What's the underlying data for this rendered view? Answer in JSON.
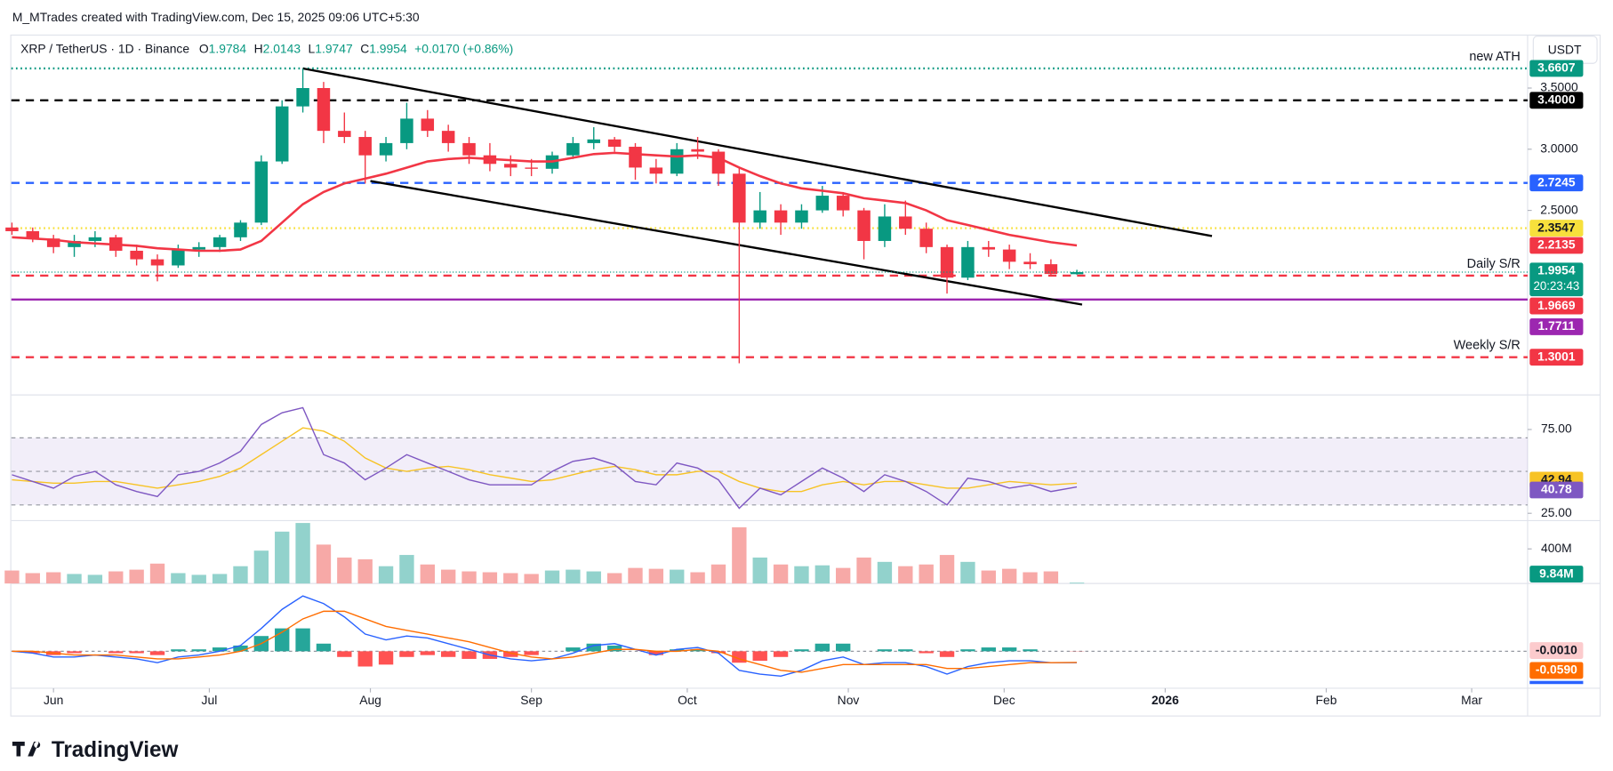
{
  "header": {
    "author_line": "M_MTrades created with TradingView.com, Dec 15, 2025 09:06 UTC+5:30",
    "symbol": "XRP / TetherUS · 1D · Binance",
    "ohlc_letters": [
      "O",
      "H",
      "L",
      "C"
    ],
    "change": "+0.0170 (+0.86%)",
    "currency": "USDT",
    "logo": "TradingView"
  },
  "chart_data": {
    "type": "candlestick",
    "x": [
      "2025-05-24",
      "2025-05-28",
      "2025-06-01",
      "2025-06-05",
      "2025-06-09",
      "2025-06-13",
      "2025-06-17",
      "2025-06-21",
      "2025-06-25",
      "2025-06-29",
      "2025-07-03",
      "2025-07-07",
      "2025-07-11",
      "2025-07-15",
      "2025-07-19",
      "2025-07-23",
      "2025-07-27",
      "2025-07-31",
      "2025-08-04",
      "2025-08-08",
      "2025-08-12",
      "2025-08-16",
      "2025-08-20",
      "2025-08-24",
      "2025-08-28",
      "2025-09-01",
      "2025-09-05",
      "2025-09-09",
      "2025-09-13",
      "2025-09-17",
      "2025-09-21",
      "2025-09-25",
      "2025-09-29",
      "2025-10-03",
      "2025-10-07",
      "2025-10-11",
      "2025-10-15",
      "2025-10-19",
      "2025-10-23",
      "2025-10-27",
      "2025-10-31",
      "2025-11-04",
      "2025-11-08",
      "2025-11-12",
      "2025-11-16",
      "2025-11-20",
      "2025-11-24",
      "2025-11-28",
      "2025-12-02",
      "2025-12-06",
      "2025-12-10",
      "2025-12-15"
    ],
    "open": [
      2.36,
      2.33,
      2.27,
      2.2,
      2.25,
      2.28,
      2.17,
      2.1,
      2.05,
      2.18,
      2.2,
      2.28,
      2.4,
      2.9,
      3.35,
      3.5,
      3.15,
      3.1,
      2.95,
      3.05,
      3.25,
      3.15,
      3.05,
      2.95,
      2.88,
      2.85,
      2.84,
      2.95,
      3.05,
      3.08,
      3.02,
      2.85,
      2.8,
      3.0,
      2.98,
      2.8,
      2.4,
      2.5,
      2.4,
      2.5,
      2.62,
      2.5,
      2.25,
      2.45,
      2.35,
      2.2,
      1.95,
      2.2,
      2.18,
      2.08,
      2.06,
      1.9784
    ],
    "high": [
      2.4,
      2.36,
      2.3,
      2.3,
      2.33,
      2.3,
      2.22,
      2.14,
      2.22,
      2.24,
      2.3,
      2.42,
      2.95,
      3.4,
      3.66,
      3.55,
      3.3,
      3.15,
      3.1,
      3.38,
      3.32,
      3.2,
      3.1,
      3.05,
      2.95,
      2.92,
      2.98,
      3.1,
      3.18,
      3.1,
      3.05,
      2.92,
      3.05,
      3.1,
      3.0,
      2.85,
      2.65,
      2.55,
      2.55,
      2.7,
      2.65,
      2.52,
      2.55,
      2.58,
      2.4,
      2.22,
      2.25,
      2.25,
      2.22,
      2.15,
      2.1,
      2.0143
    ],
    "low": [
      2.3,
      2.24,
      2.15,
      2.12,
      2.2,
      2.12,
      2.05,
      1.92,
      2.03,
      2.12,
      2.16,
      2.25,
      2.38,
      2.88,
      3.3,
      3.05,
      3.05,
      2.72,
      2.9,
      3.0,
      3.1,
      2.98,
      2.88,
      2.82,
      2.78,
      2.78,
      2.8,
      2.92,
      3.0,
      2.98,
      2.75,
      2.72,
      2.78,
      2.92,
      2.7,
      1.25,
      2.35,
      2.3,
      2.35,
      2.48,
      2.45,
      2.1,
      2.2,
      2.3,
      2.15,
      1.82,
      1.93,
      2.12,
      2.02,
      2.02,
      1.96,
      1.9747
    ],
    "close": [
      2.33,
      2.27,
      2.2,
      2.25,
      2.28,
      2.17,
      2.1,
      2.05,
      2.18,
      2.2,
      2.28,
      2.4,
      2.9,
      3.35,
      3.5,
      3.15,
      3.1,
      2.95,
      3.05,
      3.25,
      3.15,
      3.05,
      2.95,
      2.88,
      2.85,
      2.84,
      2.95,
      3.05,
      3.08,
      3.02,
      2.85,
      2.8,
      3.0,
      2.98,
      2.8,
      2.4,
      2.5,
      2.4,
      2.5,
      2.62,
      2.5,
      2.25,
      2.45,
      2.35,
      2.2,
      1.95,
      2.2,
      2.18,
      2.08,
      2.06,
      1.98,
      1.9954
    ],
    "up_color": "#089981",
    "down_color": "#f23645",
    "countdown": "20:23:43",
    "ylim": [
      1.0,
      3.92
    ],
    "yticks": [
      {
        "value": 3.5,
        "label": "3.5000"
      },
      {
        "value": 3.0,
        "label": "3.0000"
      },
      {
        "value": 2.5,
        "label": "2.5000"
      }
    ],
    "xticks": [
      {
        "value": "2025-06-01",
        "label": "Jun"
      },
      {
        "value": "2025-07-01",
        "label": "Jul"
      },
      {
        "value": "2025-08-01",
        "label": "Aug"
      },
      {
        "value": "2025-09-01",
        "label": "Sep"
      },
      {
        "value": "2025-10-01",
        "label": "Oct"
      },
      {
        "value": "2025-11-01",
        "label": "Nov"
      },
      {
        "value": "2025-12-01",
        "label": "Dec"
      },
      {
        "value": "2026-01-01",
        "label": "2026"
      },
      {
        "value": "2026-02-01",
        "label": "Feb"
      },
      {
        "value": "2026-03-01",
        "label": "Mar"
      }
    ],
    "ma": {
      "color": "#f23645",
      "values": [
        2.28,
        2.27,
        2.26,
        2.24,
        2.23,
        2.22,
        2.21,
        2.19,
        2.18,
        2.17,
        2.17,
        2.18,
        2.25,
        2.4,
        2.55,
        2.65,
        2.72,
        2.76,
        2.8,
        2.85,
        2.9,
        2.92,
        2.93,
        2.92,
        2.91,
        2.9,
        2.9,
        2.93,
        2.96,
        2.97,
        2.96,
        2.95,
        2.94,
        2.95,
        2.93,
        2.85,
        2.78,
        2.72,
        2.68,
        2.66,
        2.64,
        2.6,
        2.58,
        2.56,
        2.5,
        2.42,
        2.38,
        2.34,
        2.3,
        2.27,
        2.24,
        2.2135
      ]
    },
    "levels": [
      {
        "value": 3.6607,
        "label": "3.6607",
        "color": "#089981",
        "dash": "dot",
        "note": "new ATH"
      },
      {
        "value": 3.4,
        "label": "3.4000",
        "color": "#000000",
        "dash": "dash"
      },
      {
        "value": 2.7245,
        "label": "2.7245",
        "color": "#2962ff",
        "dash": "dash"
      },
      {
        "value": 2.3547,
        "label": "2.3547",
        "color": "#f7e03c",
        "dash": "dot"
      },
      {
        "value": 1.9669,
        "label": "1.9669",
        "color": "#f23645",
        "dash": "dash",
        "note": "Daily S/R"
      },
      {
        "value": 1.7711,
        "label": "1.7711",
        "color": "#9c27b0",
        "dash": "solid"
      },
      {
        "value": 1.3001,
        "label": "1.3001",
        "color": "#f23645",
        "dash": "dash",
        "note": "Weekly S/R"
      }
    ],
    "trendlines": [
      {
        "x": [
          "2025-07-19",
          "2026-01-10"
        ],
        "y": [
          3.66,
          2.29
        ]
      },
      {
        "x": [
          "2025-08-01",
          "2025-12-16"
        ],
        "y": [
          2.74,
          1.73
        ]
      }
    ],
    "rsi": {
      "color": "#7e57c2",
      "ma_color": "#f7c325",
      "values": [
        48,
        44,
        40,
        47,
        50,
        42,
        38,
        35,
        48,
        50,
        55,
        62,
        78,
        85,
        88,
        60,
        55,
        45,
        52,
        60,
        55,
        50,
        45,
        42,
        42,
        42,
        50,
        56,
        58,
        54,
        44,
        42,
        55,
        52,
        45,
        28,
        40,
        36,
        44,
        52,
        46,
        38,
        48,
        44,
        38,
        30,
        46,
        44,
        40,
        42,
        38,
        40.78
      ],
      "ma": [
        45,
        44,
        43,
        43,
        44,
        44,
        42,
        40,
        42,
        44,
        47,
        52,
        60,
        68,
        76,
        74,
        68,
        58,
        52,
        50,
        52,
        53,
        51,
        48,
        46,
        44,
        45,
        48,
        51,
        53,
        51,
        48,
        48,
        50,
        50,
        44,
        40,
        38,
        38,
        42,
        44,
        42,
        44,
        44,
        42,
        40,
        40,
        42,
        44,
        43,
        42,
        42.94
      ],
      "ylim": [
        20,
        95
      ],
      "yticks": [
        {
          "value": 75,
          "label": "75.00"
        },
        {
          "value": 25,
          "label": "25.00"
        }
      ],
      "bands": [
        70,
        50,
        30
      ]
    },
    "volume": {
      "up_color": "#92d2cc",
      "down_color": "#f7a9a7",
      "values": [
        150000000,
        120000000,
        130000000,
        110000000,
        100000000,
        140000000,
        160000000,
        230000000,
        120000000,
        100000000,
        110000000,
        200000000,
        380000000,
        600000000,
        700000000,
        450000000,
        300000000,
        280000000,
        200000000,
        330000000,
        220000000,
        160000000,
        140000000,
        130000000,
        120000000,
        110000000,
        150000000,
        160000000,
        140000000,
        120000000,
        180000000,
        170000000,
        160000000,
        130000000,
        220000000,
        650000000,
        300000000,
        220000000,
        200000000,
        210000000,
        180000000,
        300000000,
        250000000,
        200000000,
        220000000,
        330000000,
        250000000,
        150000000,
        170000000,
        130000000,
        140000000,
        9840000
      ],
      "value_labels": [
        null,
        null,
        null,
        null,
        null,
        null,
        null,
        null,
        null,
        null,
        null,
        null,
        null,
        null,
        null,
        null,
        null,
        null,
        null,
        null,
        null,
        null,
        null,
        null,
        null,
        null,
        null,
        null,
        null,
        null,
        null,
        null,
        null,
        null,
        null,
        null,
        null,
        null,
        null,
        null,
        null,
        null,
        null,
        null,
        null,
        null,
        null,
        null,
        null,
        null,
        null,
        "9.84M"
      ],
      "ylim": [
        0,
        715000000
      ],
      "yticks": [
        {
          "value": 400000000,
          "label": "400M"
        }
      ]
    },
    "macd": {
      "ylim": [
        -0.194,
        0.35
      ],
      "macd": {
        "color": "#2962ff",
        "values": [
          0.0,
          -0.01,
          -0.03,
          -0.03,
          -0.02,
          -0.03,
          -0.04,
          -0.06,
          -0.03,
          -0.02,
          0.0,
          0.03,
          0.12,
          0.22,
          0.29,
          0.25,
          0.18,
          0.09,
          0.06,
          0.08,
          0.07,
          0.04,
          0.01,
          -0.02,
          -0.04,
          -0.05,
          -0.04,
          -0.01,
          0.03,
          0.04,
          0.01,
          -0.02,
          0.01,
          0.02,
          -0.01,
          -0.1,
          -0.12,
          -0.13,
          -0.1,
          -0.05,
          -0.03,
          -0.07,
          -0.06,
          -0.06,
          -0.08,
          -0.12,
          -0.08,
          -0.06,
          -0.05,
          -0.05,
          -0.06,
          -0.06
        ]
      },
      "signal": {
        "color": "#ff6d00",
        "values": [
          0.0,
          0.0,
          -0.01,
          -0.02,
          -0.02,
          -0.02,
          -0.03,
          -0.04,
          -0.04,
          -0.03,
          -0.02,
          0.0,
          0.04,
          0.1,
          0.17,
          0.21,
          0.21,
          0.17,
          0.13,
          0.11,
          0.09,
          0.07,
          0.05,
          0.02,
          -0.01,
          -0.03,
          -0.04,
          -0.03,
          -0.01,
          0.01,
          0.01,
          0.0,
          0.0,
          0.01,
          0.0,
          -0.04,
          -0.07,
          -0.1,
          -0.11,
          -0.09,
          -0.07,
          -0.07,
          -0.07,
          -0.07,
          -0.07,
          -0.09,
          -0.09,
          -0.08,
          -0.07,
          -0.06,
          -0.06,
          -0.059
        ],
        "value_labels": [
          null,
          null,
          null,
          null,
          null,
          null,
          null,
          null,
          null,
          null,
          null,
          null,
          null,
          null,
          null,
          null,
          null,
          null,
          null,
          null,
          null,
          null,
          null,
          null,
          null,
          null,
          null,
          null,
          null,
          null,
          null,
          null,
          null,
          null,
          null,
          null,
          null,
          null,
          null,
          null,
          null,
          null,
          null,
          null,
          null,
          null,
          null,
          null,
          null,
          null,
          null,
          "-0.0590"
        ]
      },
      "histogram": {
        "up_color": "#26a69a",
        "down_color": "#ff5252",
        "label_color": "#fccbcd",
        "values": [
          0,
          -0.01,
          -0.02,
          -0.01,
          0,
          -0.01,
          -0.01,
          -0.02,
          0.01,
          0.01,
          0.02,
          0.03,
          0.08,
          0.12,
          0.12,
          0.04,
          -0.03,
          -0.08,
          -0.07,
          -0.03,
          -0.02,
          -0.03,
          -0.04,
          -0.04,
          -0.03,
          -0.02,
          0,
          0.02,
          0.04,
          0.03,
          0,
          -0.02,
          0.01,
          0.01,
          -0.01,
          -0.06,
          -0.05,
          -0.03,
          0.01,
          0.04,
          0.04,
          0,
          0.01,
          0.01,
          -0.01,
          -0.03,
          0.01,
          0.02,
          0.02,
          0.01,
          0,
          -0.001
        ],
        "value_labels": [
          null,
          null,
          null,
          null,
          null,
          null,
          null,
          null,
          null,
          null,
          null,
          null,
          null,
          null,
          null,
          null,
          null,
          null,
          null,
          null,
          null,
          null,
          null,
          null,
          null,
          null,
          null,
          null,
          null,
          null,
          null,
          null,
          null,
          null,
          null,
          null,
          null,
          null,
          null,
          null,
          null,
          null,
          null,
          null,
          null,
          null,
          null,
          null,
          null,
          null,
          null,
          "-0.0010"
        ]
      }
    }
  }
}
